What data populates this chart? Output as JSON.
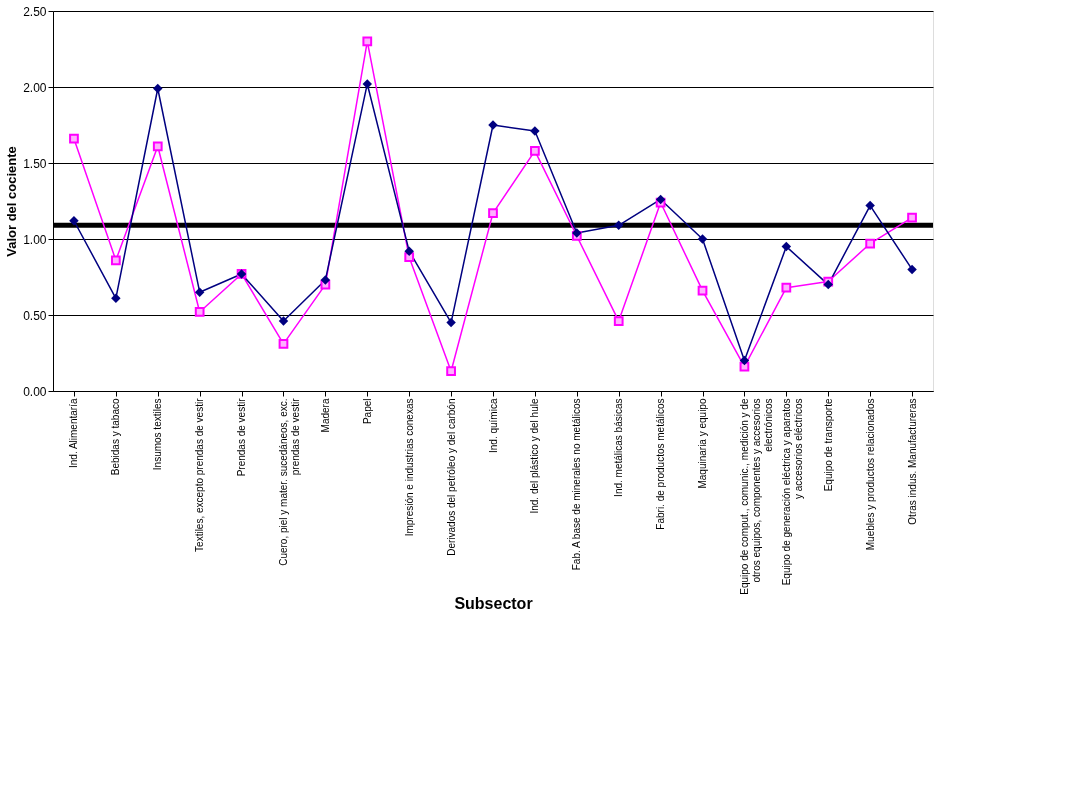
{
  "chart_data": {
    "type": "line",
    "xlabel": "Subsector",
    "ylabel": "Valor del cociente",
    "categories": [
      "Ind. Alimentaría",
      "Bebidas y tabaco",
      "Insumos textiles",
      "Textiles, excepto prendas de vestir",
      "Prendas de vestir",
      "Cuero, piel y mater. sucedáneos, exc. prendas de vestir",
      "Madera",
      "Papel",
      "Impresión e industrias conexas",
      "Derivados del petróleo y del carbón",
      "Ind. química",
      "Ind. del plástico y del hule",
      "Fab. A base de minerales no metálicos",
      "Ind. metálicas básicas",
      "Fabri. de productos metálicos",
      "Maquinaria y equipo",
      "Equipo de comput., comunic., medición y de otros equipos, componentes y accesorios electrónicos",
      "Equipo de generación eléctrica y aparatos y accesorios eléctricos",
      "Equipo de transporte",
      "Muebles y productos relacionados",
      "Otras indus. Manufactureras"
    ],
    "series": [
      {
        "color": "#000080",
        "marker": "diamond",
        "values": [
          1.12,
          0.61,
          1.99,
          0.65,
          0.77,
          0.46,
          0.73,
          2.02,
          0.92,
          0.45,
          1.75,
          1.71,
          1.04,
          1.09,
          1.26,
          1.0,
          0.2,
          0.95,
          0.7,
          1.22,
          0.8
        ]
      },
      {
        "color": "#ff00ff",
        "marker": "square",
        "values": [
          1.66,
          0.86,
          1.61,
          0.52,
          0.77,
          0.31,
          0.7,
          2.3,
          0.88,
          0.13,
          1.17,
          1.58,
          1.02,
          0.46,
          1.24,
          0.66,
          0.16,
          0.68,
          0.72,
          0.97,
          1.14
        ]
      }
    ],
    "ylim": [
      0,
      2.5
    ],
    "yticks": [
      {
        "value": 0,
        "label": "0.00"
      },
      {
        "value": 0.5,
        "label": "0.50"
      },
      {
        "value": 1,
        "label": "1.00"
      },
      {
        "value": 1.5,
        "label": "1.50"
      },
      {
        "value": 2,
        "label": "2.00"
      },
      {
        "value": 2.5,
        "label": "2.50"
      }
    ],
    "ref_lines": [
      {
        "axis": "y",
        "value": 1.09,
        "color": "#000000"
      }
    ],
    "grid": "y",
    "line_style": "solid"
  }
}
